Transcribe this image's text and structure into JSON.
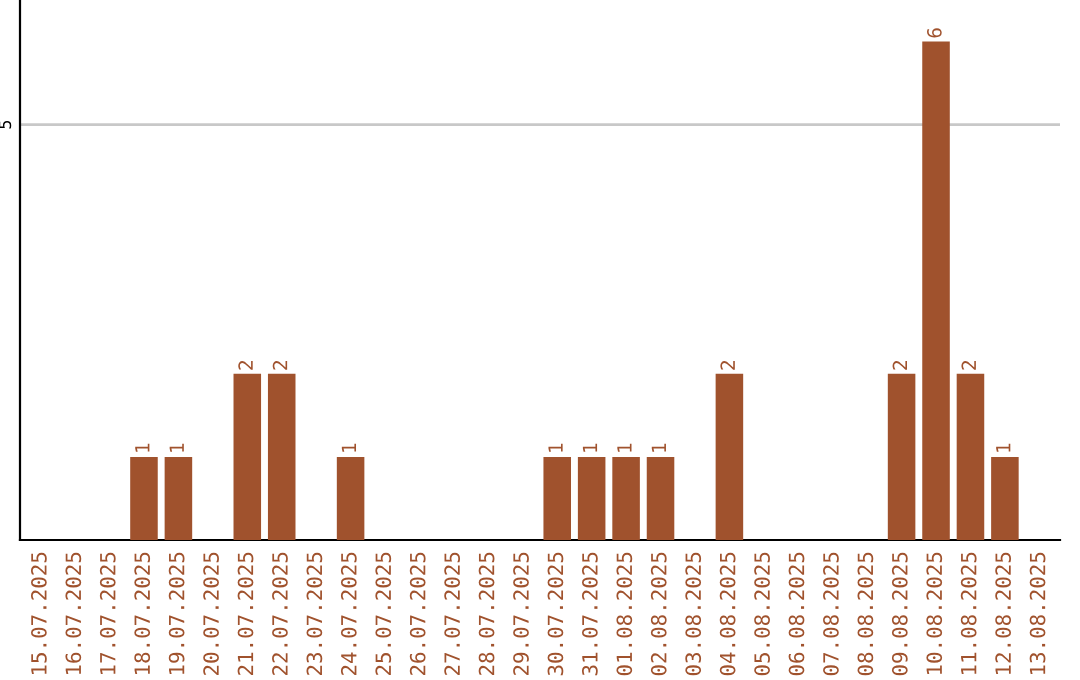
{
  "chart_data": {
    "type": "bar",
    "categories": [
      "15.07.2025",
      "16.07.2025",
      "17.07.2025",
      "18.07.2025",
      "19.07.2025",
      "20.07.2025",
      "21.07.2025",
      "22.07.2025",
      "23.07.2025",
      "24.07.2025",
      "25.07.2025",
      "26.07.2025",
      "27.07.2025",
      "28.07.2025",
      "29.07.2025",
      "30.07.2025",
      "31.07.2025",
      "01.08.2025",
      "02.08.2025",
      "03.08.2025",
      "04.08.2025",
      "05.08.2025",
      "06.08.2025",
      "07.08.2025",
      "08.08.2025",
      "09.08.2025",
      "10.08.2025",
      "11.08.2025",
      "12.08.2025",
      "13.08.2025"
    ],
    "values": [
      0,
      0,
      0,
      1,
      1,
      0,
      2,
      2,
      0,
      1,
      0,
      0,
      0,
      0,
      0,
      1,
      1,
      1,
      1,
      0,
      2,
      0,
      0,
      0,
      0,
      2,
      6,
      2,
      1,
      0
    ],
    "value_labels": [
      null,
      null,
      null,
      "1",
      "1",
      null,
      "2",
      "2",
      null,
      "1",
      null,
      null,
      null,
      null,
      null,
      "1",
      "1",
      "1",
      "1",
      null,
      "2",
      null,
      null,
      null,
      null,
      "2",
      "6",
      "2",
      "1",
      null
    ],
    "color": "#a0522d",
    "ylim": [
      0,
      6.5
    ],
    "yticks": [
      5
    ],
    "grid": "y",
    "legend": false
  }
}
